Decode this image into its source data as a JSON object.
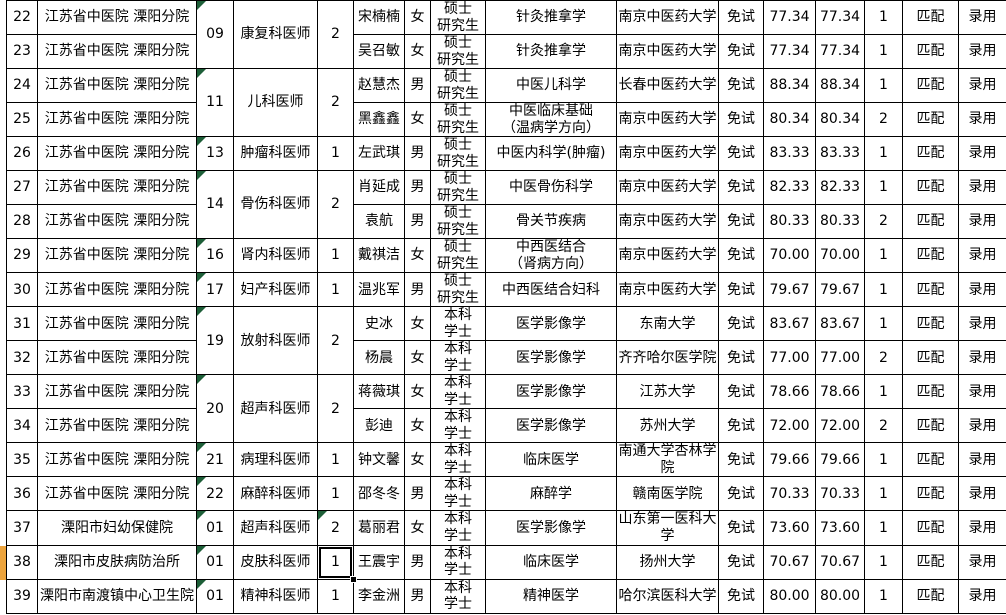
{
  "colors": {
    "triangle_indicator": "#1d5f38",
    "left_stripe_highlight": "#eda43c",
    "grid_border": "#000000",
    "background": "#ffffff"
  },
  "table": {
    "rows": [
      {
        "no": "22",
        "hospital": "江苏省中医院 溧阳分院",
        "group": {
          "code": "09",
          "position": "康复科医师",
          "count": "2",
          "span": 2,
          "code_mark": true,
          "count_mark": false,
          "selected": false
        },
        "name": "宋楠楠",
        "gender": "女",
        "education": "硕士\n研究生",
        "major": "针灸推拿学",
        "university": "南京中医药大学",
        "exam": "免试",
        "score1": "77.34",
        "score2": "77.34",
        "rank": "1",
        "match": "匹配",
        "result": "录用"
      },
      {
        "no": "23",
        "hospital": "江苏省中医院 溧阳分院",
        "group": null,
        "name": "吴召敏",
        "gender": "女",
        "education": "硕士\n研究生",
        "major": "针灸推拿学",
        "university": "南京中医药大学",
        "exam": "免试",
        "score1": "77.34",
        "score2": "77.34",
        "rank": "1",
        "match": "匹配",
        "result": "录用"
      },
      {
        "no": "24",
        "hospital": "江苏省中医院 溧阳分院",
        "group": {
          "code": "11",
          "position": "儿科医师",
          "count": "2",
          "span": 2,
          "code_mark": true,
          "count_mark": false,
          "selected": false
        },
        "name": "赵慧杰",
        "gender": "男",
        "education": "硕士\n研究生",
        "major": "中医儿科学",
        "university": "长春中医药大学",
        "exam": "免试",
        "score1": "88.34",
        "score2": "88.34",
        "rank": "1",
        "match": "匹配",
        "result": "录用"
      },
      {
        "no": "25",
        "hospital": "江苏省中医院 溧阳分院",
        "group": null,
        "name": "黑鑫鑫",
        "gender": "女",
        "education": "硕士\n研究生",
        "major": "中医临床基础\n（温病学方向）",
        "university": "南京中医药大学",
        "exam": "免试",
        "score1": "80.34",
        "score2": "80.34",
        "rank": "2",
        "match": "匹配",
        "result": "录用"
      },
      {
        "no": "26",
        "hospital": "江苏省中医院 溧阳分院",
        "group": {
          "code": "13",
          "position": "肿瘤科医师",
          "count": "1",
          "span": 1,
          "code_mark": true,
          "count_mark": false,
          "selected": false
        },
        "name": "左武琪",
        "gender": "男",
        "education": "硕士\n研究生",
        "major": "中医内科学(肿瘤)",
        "university": "南京中医药大学",
        "exam": "免试",
        "score1": "83.33",
        "score2": "83.33",
        "rank": "1",
        "match": "匹配",
        "result": "录用"
      },
      {
        "no": "27",
        "hospital": "江苏省中医院 溧阳分院",
        "group": {
          "code": "14",
          "position": "骨伤科医师",
          "count": "2",
          "span": 2,
          "code_mark": true,
          "count_mark": false,
          "selected": false
        },
        "name": "肖延成",
        "gender": "男",
        "education": "硕士\n研究生",
        "major": "中医骨伤科学",
        "university": "南京中医药大学",
        "exam": "免试",
        "score1": "82.33",
        "score2": "82.33",
        "rank": "1",
        "match": "匹配",
        "result": "录用"
      },
      {
        "no": "28",
        "hospital": "江苏省中医院 溧阳分院",
        "group": null,
        "name": "袁航",
        "gender": "男",
        "education": "硕士\n研究生",
        "major": "骨关节疾病",
        "university": "南京中医药大学",
        "exam": "免试",
        "score1": "80.33",
        "score2": "80.33",
        "rank": "2",
        "match": "匹配",
        "result": "录用"
      },
      {
        "no": "29",
        "hospital": "江苏省中医院 溧阳分院",
        "group": {
          "code": "16",
          "position": "肾内科医师",
          "count": "1",
          "span": 1,
          "code_mark": true,
          "count_mark": false,
          "selected": false
        },
        "name": "戴祺洁",
        "gender": "女",
        "education": "硕士\n研究生",
        "major": "中西医结合\n（肾病方向）",
        "university": "南京中医药大学",
        "exam": "免试",
        "score1": "70.00",
        "score2": "70.00",
        "rank": "1",
        "match": "匹配",
        "result": "录用"
      },
      {
        "no": "30",
        "hospital": "江苏省中医院 溧阳分院",
        "group": {
          "code": "17",
          "position": "妇产科医师",
          "count": "1",
          "span": 1,
          "code_mark": true,
          "count_mark": false,
          "selected": false
        },
        "name": "温兆军",
        "gender": "男",
        "education": "硕士\n研究生",
        "major": "中西医结合妇科",
        "university": "南京中医药大学",
        "exam": "免试",
        "score1": "79.67",
        "score2": "79.67",
        "rank": "1",
        "match": "匹配",
        "result": "录用"
      },
      {
        "no": "31",
        "hospital": "江苏省中医院 溧阳分院",
        "group": {
          "code": "19",
          "position": "放射科医师",
          "count": "2",
          "span": 2,
          "code_mark": true,
          "count_mark": false,
          "selected": false
        },
        "name": "史冰",
        "gender": "女",
        "education": "本科\n学士",
        "major": "医学影像学",
        "university": "东南大学",
        "exam": "免试",
        "score1": "83.67",
        "score2": "83.67",
        "rank": "1",
        "match": "匹配",
        "result": "录用"
      },
      {
        "no": "32",
        "hospital": "江苏省中医院 溧阳分院",
        "group": null,
        "name": "杨晨",
        "gender": "女",
        "education": "本科\n学士",
        "major": "医学影像学",
        "university": "齐齐哈尔医学院",
        "exam": "免试",
        "score1": "77.00",
        "score2": "77.00",
        "rank": "2",
        "match": "匹配",
        "result": "录用"
      },
      {
        "no": "33",
        "hospital": "江苏省中医院 溧阳分院",
        "group": {
          "code": "20",
          "position": "超声科医师",
          "count": "2",
          "span": 2,
          "code_mark": true,
          "count_mark": false,
          "selected": false
        },
        "name": "蒋薇琪",
        "gender": "女",
        "education": "本科\n学士",
        "major": "医学影像学",
        "university": "江苏大学",
        "exam": "免试",
        "score1": "78.66",
        "score2": "78.66",
        "rank": "1",
        "match": "匹配",
        "result": "录用"
      },
      {
        "no": "34",
        "hospital": "江苏省中医院 溧阳分院",
        "group": null,
        "name": "彭迪",
        "gender": "女",
        "education": "本科\n学士",
        "major": "医学影像学",
        "university": "苏州大学",
        "exam": "免试",
        "score1": "72.00",
        "score2": "72.00",
        "rank": "2",
        "match": "匹配",
        "result": "录用"
      },
      {
        "no": "35",
        "hospital": "江苏省中医院 溧阳分院",
        "group": {
          "code": "21",
          "position": "病理科医师",
          "count": "1",
          "span": 1,
          "code_mark": true,
          "count_mark": false,
          "selected": false
        },
        "name": "钟文馨",
        "gender": "女",
        "education": "本科\n学士",
        "major": "临床医学",
        "university": "南通大学杏林学院",
        "exam": "免试",
        "score1": "79.66",
        "score2": "79.66",
        "rank": "1",
        "match": "匹配",
        "result": "录用"
      },
      {
        "no": "36",
        "hospital": "江苏省中医院 溧阳分院",
        "group": {
          "code": "22",
          "position": "麻醉科医师",
          "count": "1",
          "span": 1,
          "code_mark": true,
          "count_mark": false,
          "selected": false
        },
        "name": "邵冬冬",
        "gender": "男",
        "education": "本科\n学士",
        "major": "麻醉学",
        "university": "赣南医学院",
        "exam": "免试",
        "score1": "70.33",
        "score2": "70.33",
        "rank": "1",
        "match": "匹配",
        "result": "录用"
      },
      {
        "no": "37",
        "hospital": "溧阳市妇幼保健院",
        "group": {
          "code": "01",
          "position": "超声科医师",
          "count": "2",
          "span": 1,
          "code_mark": true,
          "count_mark": true,
          "selected": false
        },
        "name": "葛丽君",
        "gender": "女",
        "education": "本科\n学士",
        "major": "医学影像学",
        "university": "山东第一医科大学",
        "exam": "免试",
        "score1": "73.60",
        "score2": "73.60",
        "rank": "1",
        "match": "匹配",
        "result": "录用"
      },
      {
        "no": "38",
        "hospital": "溧阳市皮肤病防治所",
        "group": {
          "code": "01",
          "position": "皮肤科医师",
          "count": "1",
          "span": 1,
          "code_mark": true,
          "count_mark": false,
          "selected": true
        },
        "name": "王震宇",
        "gender": "男",
        "education": "本科\n学士",
        "major": "临床医学",
        "university": "扬州大学",
        "exam": "免试",
        "score1": "70.67",
        "score2": "70.67",
        "rank": "1",
        "match": "匹配",
        "result": "录用"
      },
      {
        "no": "39",
        "hospital": "溧阳市南渡镇中心卫生院",
        "group": {
          "code": "01",
          "position": "精神科医师",
          "count": "1",
          "span": 1,
          "code_mark": true,
          "count_mark": false,
          "selected": false
        },
        "name": "李金洲",
        "gender": "男",
        "education": "本科\n学士",
        "major": "精神医学",
        "university": "哈尔滨医科大学",
        "exam": "免试",
        "score1": "80.00",
        "score2": "80.00",
        "rank": "1",
        "match": "匹配",
        "result": "录用"
      }
    ]
  }
}
